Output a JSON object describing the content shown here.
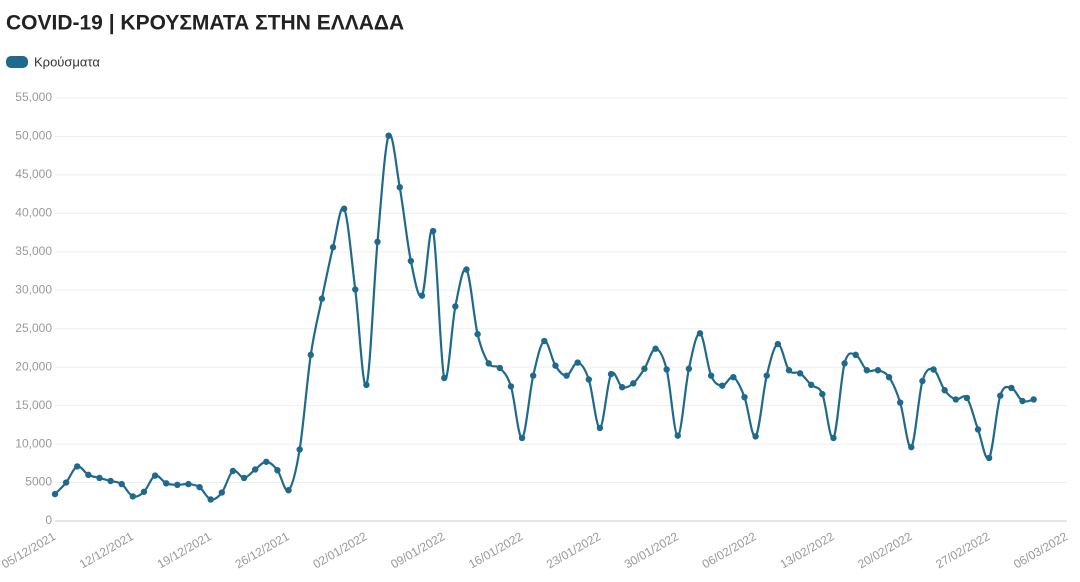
{
  "chart_data": {
    "type": "line",
    "title": "COVID-19 | ΚΡΟΥΣΜΑΤΑ ΣΤΗΝ ΕΛΛΑΔΑ",
    "categories": [
      "05/12/2021",
      null,
      null,
      null,
      null,
      null,
      null,
      "12/12/2021",
      null,
      null,
      null,
      null,
      null,
      null,
      "19/12/2021",
      null,
      null,
      null,
      null,
      null,
      null,
      "26/12/2021",
      null,
      null,
      null,
      null,
      null,
      null,
      "02/01/2022",
      null,
      null,
      null,
      null,
      null,
      null,
      "09/01/2022",
      null,
      null,
      null,
      null,
      null,
      null,
      "16/01/2022",
      null,
      null,
      null,
      null,
      null,
      null,
      "23/01/2022",
      null,
      null,
      null,
      null,
      null,
      null,
      "30/01/2022",
      null,
      null,
      null,
      null,
      null,
      null,
      "06/02/2022",
      null,
      null,
      null,
      null,
      null,
      null,
      "13/02/2022",
      null,
      null,
      null,
      null,
      null,
      null,
      "20/02/2022",
      null,
      null,
      null,
      null,
      null,
      null,
      "27/02/2022",
      null,
      null,
      null,
      null,
      null,
      null,
      "06/03/2022"
    ],
    "series": [
      {
        "name": "Κρούσματα",
        "color": "#1f6a8c",
        "values": [
          3500,
          5000,
          7100,
          6000,
          5600,
          5200,
          4800,
          3200,
          3800,
          5900,
          4900,
          4700,
          4800,
          4400,
          2800,
          3700,
          6500,
          5600,
          6700,
          7700,
          6600,
          4000,
          9300,
          21600,
          28900,
          35600,
          40600,
          30100,
          17700,
          36300,
          50100,
          43400,
          33800,
          29300,
          37700,
          18600,
          27900,
          32700,
          24300,
          20500,
          19900,
          17500,
          10800,
          18900,
          23400,
          20200,
          18900,
          20600,
          18400,
          12100,
          19100,
          17400,
          17900,
          19800,
          22400,
          19700,
          11100,
          19800,
          24400,
          18900,
          17600,
          18700,
          16100,
          11000,
          18900,
          23000,
          19600,
          19200,
          17700,
          16500,
          10800,
          20500,
          21600,
          19600,
          19600,
          18700,
          15400,
          9600,
          18200,
          19700,
          17000,
          15800,
          16000,
          11900,
          8200,
          16300,
          17300,
          15600,
          15800,
          null,
          null,
          null
        ]
      }
    ],
    "ylim": [
      0,
      55000
    ],
    "yticks": [
      0,
      {
        "value": 5000,
        "label": "5000"
      },
      {
        "value": 10000,
        "label": "10,000"
      },
      {
        "value": 15000,
        "label": "15,000"
      },
      {
        "value": 20000,
        "label": "20,000"
      },
      {
        "value": 25000,
        "label": "25,000"
      },
      {
        "value": 30000,
        "label": "30,000"
      },
      {
        "value": 35000,
        "label": "35,000"
      },
      {
        "value": 40000,
        "label": "40,000"
      },
      {
        "value": 45000,
        "label": "45,000"
      },
      {
        "value": 50000,
        "label": "50,000"
      },
      {
        "value": 55000,
        "label": "55,000"
      }
    ],
    "grid": true,
    "legend": "top-left"
  }
}
